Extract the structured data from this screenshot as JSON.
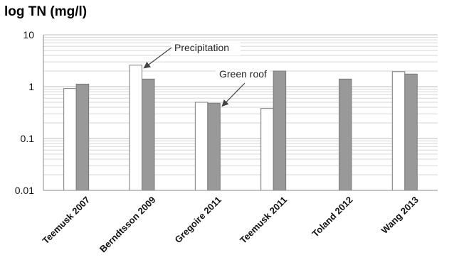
{
  "chart_data": {
    "type": "bar",
    "title": "",
    "ylabel": "log TN (mg/l)",
    "xlabel": "",
    "yscale": "log",
    "ylim": [
      0.01,
      10
    ],
    "yticks": [
      {
        "value": 10,
        "label": "10"
      },
      {
        "value": 1,
        "label": "1"
      },
      {
        "value": 0.1,
        "label": "0.1"
      },
      {
        "value": 0.01,
        "label": "0.01"
      }
    ],
    "grid": true,
    "legend": "none",
    "categories": [
      "Teemusk 2007",
      "Berndtsson 2009",
      "Gregoire 2011",
      "Teemusk 2011",
      "Toland 2012",
      "Wang 2013"
    ],
    "series": [
      {
        "name": "Precipitation",
        "color": "#ffffff",
        "values": [
          0.92,
          2.6,
          0.5,
          0.38,
          null,
          1.95
        ]
      },
      {
        "name": "Green roof",
        "color": "#999999",
        "values": [
          1.12,
          1.4,
          0.48,
          2.0,
          1.4,
          1.75
        ]
      }
    ],
    "annotations": [
      {
        "text": "Precipitation",
        "series": 0,
        "category": 1
      },
      {
        "text": "Green roof",
        "series": 1,
        "category": 2
      }
    ]
  }
}
